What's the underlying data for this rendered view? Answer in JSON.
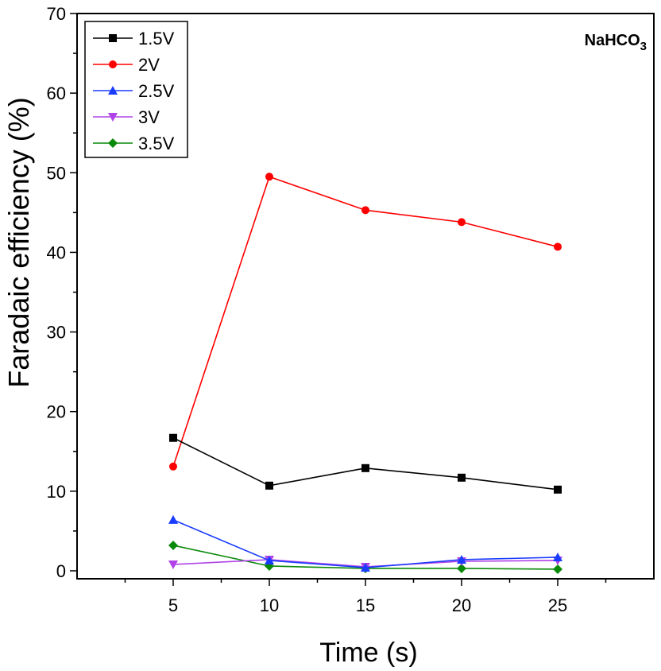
{
  "chart_data": {
    "type": "line",
    "title": "",
    "xlabel": "Time (s)",
    "ylabel": "Faradaic efficiency (%)",
    "x": [
      5,
      10,
      15,
      20,
      25
    ],
    "xlim": [
      0,
      30
    ],
    "ylim": [
      -1,
      70
    ],
    "xticks": [
      5,
      10,
      15,
      20,
      25
    ],
    "yticks": [
      0,
      10,
      20,
      30,
      40,
      50,
      60,
      70
    ],
    "annotation": {
      "main": "NaHCO",
      "subscript": "3"
    },
    "legend_position": "top-left",
    "grid": false,
    "series": [
      {
        "name": "1.5V",
        "color": "#000000",
        "marker": "square",
        "values": [
          16.7,
          10.7,
          12.9,
          11.7,
          10.2
        ]
      },
      {
        "name": "2V",
        "color": "#ff0000",
        "marker": "circle",
        "values": [
          13.1,
          49.5,
          45.3,
          43.8,
          40.7
        ]
      },
      {
        "name": "2.5V",
        "color": "#1a3cff",
        "marker": "triangle-up",
        "values": [
          6.4,
          1.3,
          0.4,
          1.4,
          1.7
        ]
      },
      {
        "name": "3V",
        "color": "#b043e8",
        "marker": "triangle-down",
        "values": [
          0.8,
          1.4,
          0.5,
          1.2,
          1.3
        ]
      },
      {
        "name": "3.5V",
        "color": "#0a8a0a",
        "marker": "diamond",
        "values": [
          3.2,
          0.6,
          0.3,
          0.3,
          0.2
        ]
      }
    ]
  }
}
